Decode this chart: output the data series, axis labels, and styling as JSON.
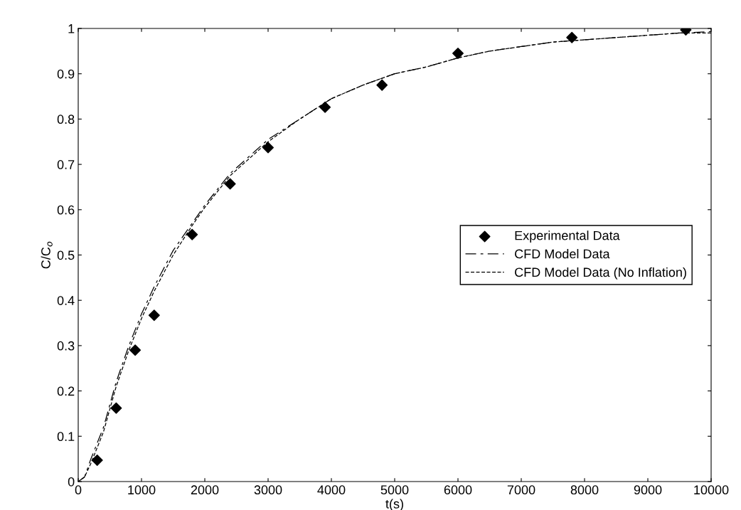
{
  "chart_data": {
    "type": "line",
    "xlabel": "t(s)",
    "ylabel": "C/C$_{o}$",
    "xlim": [
      0,
      10000
    ],
    "xticks": [
      0,
      1000,
      2000,
      3000,
      4000,
      5000,
      6000,
      7000,
      8000,
      9000,
      10000
    ],
    "ylim": [
      0,
      1
    ],
    "yticks": [
      0,
      0.1,
      0.2,
      0.3,
      0.4,
      0.5,
      0.6,
      0.7,
      0.8,
      0.9,
      1
    ],
    "grid": false,
    "legend": "right",
    "series": [
      {
        "name": "Experimental Data",
        "type": "scatter",
        "marker": "diamond",
        "color": "#000000",
        "x": [
          300,
          600,
          900,
          1200,
          1800,
          2400,
          3000,
          3900,
          4800,
          6000,
          7800,
          9600
        ],
        "values": [
          0.047,
          0.162,
          0.29,
          0.367,
          0.545,
          0.657,
          0.737,
          0.826,
          0.875,
          0.945,
          0.98,
          0.997
        ]
      },
      {
        "name": "CFD Model Data",
        "line_style": "dashed",
        "color": "#000000",
        "x": [
          0,
          100,
          200,
          400,
          600,
          800,
          1000,
          1200,
          1500,
          1800,
          2000,
          2400,
          2800,
          3000,
          3500,
          4000,
          4500,
          5000,
          5500,
          6000,
          6500,
          7000,
          7500,
          8000,
          8500,
          9000,
          9500,
          10000
        ],
        "values": [
          0,
          0.01,
          0.05,
          0.12,
          0.22,
          0.3,
          0.37,
          0.43,
          0.51,
          0.57,
          0.61,
          0.68,
          0.73,
          0.755,
          0.8,
          0.845,
          0.875,
          0.9,
          0.915,
          0.935,
          0.95,
          0.96,
          0.97,
          0.975,
          0.98,
          0.985,
          0.99,
          0.993
        ]
      },
      {
        "name": "CFD Model Data (No Inflation)",
        "line_style": "dotted",
        "color": "#000000",
        "x": [
          50,
          100,
          200,
          400,
          600,
          800,
          1000,
          1200,
          1500,
          1800,
          2000,
          2400,
          2800,
          3000,
          3500,
          4000,
          4500,
          5000,
          5500,
          6000,
          6500,
          7000,
          7500,
          8000,
          8500,
          9000,
          9500,
          10000
        ],
        "values": [
          0.005,
          0.01,
          0.04,
          0.11,
          0.21,
          0.29,
          0.36,
          0.42,
          0.5,
          0.565,
          0.605,
          0.675,
          0.725,
          0.75,
          0.8,
          0.845,
          0.875,
          0.9,
          0.915,
          0.935,
          0.95,
          0.96,
          0.97,
          0.975,
          0.98,
          0.985,
          0.99,
          0.99
        ]
      }
    ]
  }
}
